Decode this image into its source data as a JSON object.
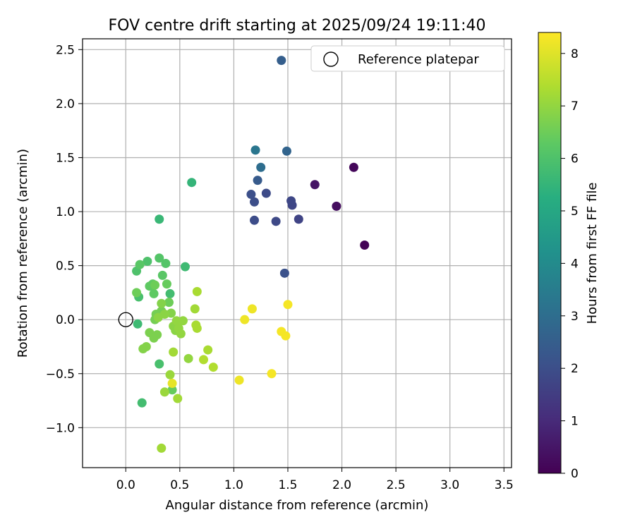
{
  "chart_data": {
    "type": "scatter",
    "title": "FOV centre drift starting at 2025/09/24 19:11:40",
    "xlabel": "Angular distance from reference (arcmin)",
    "ylabel": "Rotation from reference (arcmin)",
    "xlim": [
      -0.4,
      3.57
    ],
    "ylim": [
      -1.37,
      2.6
    ],
    "xticks": [
      0.0,
      0.5,
      1.0,
      1.5,
      2.0,
      2.5,
      3.0,
      3.5
    ],
    "yticks": [
      -1.0,
      -0.5,
      0.0,
      0.5,
      1.0,
      1.5,
      2.0,
      2.5
    ],
    "xtick_labels": [
      "0.0",
      "0.5",
      "1.0",
      "1.5",
      "2.0",
      "2.5",
      "3.0",
      "3.5"
    ],
    "ytick_labels": [
      "−1.0",
      "−0.5",
      "0.0",
      "0.5",
      "1.0",
      "1.5",
      "2.0",
      "2.5"
    ],
    "grid": true,
    "legend": {
      "position": "top-right",
      "entries": [
        "Reference platepar"
      ]
    },
    "reference_point": {
      "x": 0.0,
      "y": 0.0
    },
    "colorbar": {
      "label": "Hours from first FF file",
      "min": 0,
      "max": 8.4,
      "ticks": [
        0,
        1,
        2,
        3,
        4,
        5,
        6,
        7,
        8
      ],
      "tick_labels": [
        "0",
        "1",
        "2",
        "3",
        "4",
        "5",
        "6",
        "7",
        "8"
      ],
      "colormap": "viridis"
    },
    "points": [
      {
        "x": 2.21,
        "y": 0.69,
        "c": 0.05
      },
      {
        "x": 2.11,
        "y": 1.41,
        "c": 0.15
      },
      {
        "x": 1.95,
        "y": 1.05,
        "c": 0.3
      },
      {
        "x": 1.75,
        "y": 1.25,
        "c": 0.45
      },
      {
        "x": 1.6,
        "y": 0.93,
        "c": 1.7
      },
      {
        "x": 1.54,
        "y": 1.06,
        "c": 1.75
      },
      {
        "x": 1.53,
        "y": 1.1,
        "c": 1.8
      },
      {
        "x": 1.39,
        "y": 0.91,
        "c": 1.85
      },
      {
        "x": 1.3,
        "y": 1.17,
        "c": 1.9
      },
      {
        "x": 1.19,
        "y": 0.92,
        "c": 1.95
      },
      {
        "x": 1.19,
        "y": 1.09,
        "c": 2.0
      },
      {
        "x": 1.16,
        "y": 1.16,
        "c": 2.05
      },
      {
        "x": 1.47,
        "y": 0.43,
        "c": 2.1
      },
      {
        "x": 1.22,
        "y": 1.29,
        "c": 2.4
      },
      {
        "x": 1.44,
        "y": 2.4,
        "c": 2.5
      },
      {
        "x": 1.49,
        "y": 1.56,
        "c": 2.7
      },
      {
        "x": 1.25,
        "y": 1.41,
        "c": 3.0
      },
      {
        "x": 1.2,
        "y": 1.57,
        "c": 3.3
      },
      {
        "x": 0.61,
        "y": 1.27,
        "c": 5.5
      },
      {
        "x": 0.31,
        "y": 0.93,
        "c": 5.6
      },
      {
        "x": 0.55,
        "y": 0.49,
        "c": 5.7
      },
      {
        "x": 0.11,
        "y": -0.04,
        "c": 5.7
      },
      {
        "x": 0.15,
        "y": -0.77,
        "c": 5.8
      },
      {
        "x": 0.41,
        "y": 0.24,
        "c": 5.8
      },
      {
        "x": 0.31,
        "y": -0.41,
        "c": 5.9
      },
      {
        "x": 0.12,
        "y": 0.21,
        "c": 5.9
      },
      {
        "x": 0.1,
        "y": 0.45,
        "c": 6.0
      },
      {
        "x": 0.2,
        "y": 0.54,
        "c": 6.0
      },
      {
        "x": 0.31,
        "y": 0.57,
        "c": 6.1
      },
      {
        "x": 0.37,
        "y": 0.52,
        "c": 6.1
      },
      {
        "x": 0.34,
        "y": 0.41,
        "c": 6.2
      },
      {
        "x": 0.13,
        "y": 0.51,
        "c": 6.2
      },
      {
        "x": 0.25,
        "y": 0.33,
        "c": 6.3
      },
      {
        "x": 0.22,
        "y": 0.31,
        "c": 6.3
      },
      {
        "x": 0.26,
        "y": 0.24,
        "c": 6.3
      },
      {
        "x": 0.38,
        "y": 0.33,
        "c": 6.4
      },
      {
        "x": 0.43,
        "y": -0.65,
        "c": 6.4
      },
      {
        "x": 0.27,
        "y": 0.32,
        "c": 6.5
      },
      {
        "x": 0.1,
        "y": 0.25,
        "c": 6.5
      },
      {
        "x": 0.4,
        "y": 0.16,
        "c": 6.5
      },
      {
        "x": 0.33,
        "y": 0.08,
        "c": 6.6
      },
      {
        "x": 0.28,
        "y": 0.05,
        "c": 6.6
      },
      {
        "x": 0.27,
        "y": 0.0,
        "c": 6.6
      },
      {
        "x": 0.22,
        "y": -0.12,
        "c": 6.7
      },
      {
        "x": 0.26,
        "y": -0.17,
        "c": 6.7
      },
      {
        "x": 0.29,
        "y": -0.14,
        "c": 6.7
      },
      {
        "x": 0.19,
        "y": -0.25,
        "c": 6.8
      },
      {
        "x": 0.16,
        "y": -0.27,
        "c": 6.8
      },
      {
        "x": 0.33,
        "y": 0.15,
        "c": 6.8
      },
      {
        "x": 0.42,
        "y": 0.06,
        "c": 6.8
      },
      {
        "x": 0.36,
        "y": 0.05,
        "c": 6.9
      },
      {
        "x": 0.3,
        "y": 0.02,
        "c": 6.9
      },
      {
        "x": 0.44,
        "y": -0.06,
        "c": 6.9
      },
      {
        "x": 0.46,
        "y": -0.1,
        "c": 6.9
      },
      {
        "x": 0.49,
        "y": -0.08,
        "c": 7.0
      },
      {
        "x": 0.53,
        "y": -0.01,
        "c": 7.0
      },
      {
        "x": 0.51,
        "y": -0.13,
        "c": 7.0
      },
      {
        "x": 0.47,
        "y": -0.01,
        "c": 7.0
      },
      {
        "x": 0.58,
        "y": -0.36,
        "c": 7.0
      },
      {
        "x": 0.41,
        "y": -0.51,
        "c": 7.1
      },
      {
        "x": 0.36,
        "y": -0.67,
        "c": 7.1
      },
      {
        "x": 0.33,
        "y": -1.19,
        "c": 7.2
      },
      {
        "x": 0.44,
        "y": -0.3,
        "c": 7.2
      },
      {
        "x": 0.48,
        "y": -0.73,
        "c": 7.2
      },
      {
        "x": 0.64,
        "y": 0.1,
        "c": 7.2
      },
      {
        "x": 0.66,
        "y": 0.26,
        "c": 7.3
      },
      {
        "x": 0.65,
        "y": -0.05,
        "c": 7.3
      },
      {
        "x": 0.66,
        "y": -0.08,
        "c": 7.3
      },
      {
        "x": 0.76,
        "y": -0.28,
        "c": 7.3
      },
      {
        "x": 0.72,
        "y": -0.37,
        "c": 7.4
      },
      {
        "x": 0.81,
        "y": -0.44,
        "c": 7.4
      },
      {
        "x": 0.43,
        "y": -0.59,
        "c": 8.1
      },
      {
        "x": 1.05,
        "y": -0.56,
        "c": 8.2
      },
      {
        "x": 1.1,
        "y": 0.0,
        "c": 8.2
      },
      {
        "x": 1.17,
        "y": 0.1,
        "c": 8.2
      },
      {
        "x": 1.35,
        "y": -0.5,
        "c": 8.3
      },
      {
        "x": 1.44,
        "y": -0.11,
        "c": 8.3
      },
      {
        "x": 1.48,
        "y": -0.15,
        "c": 8.3
      },
      {
        "x": 1.5,
        "y": 0.14,
        "c": 8.3
      }
    ]
  }
}
